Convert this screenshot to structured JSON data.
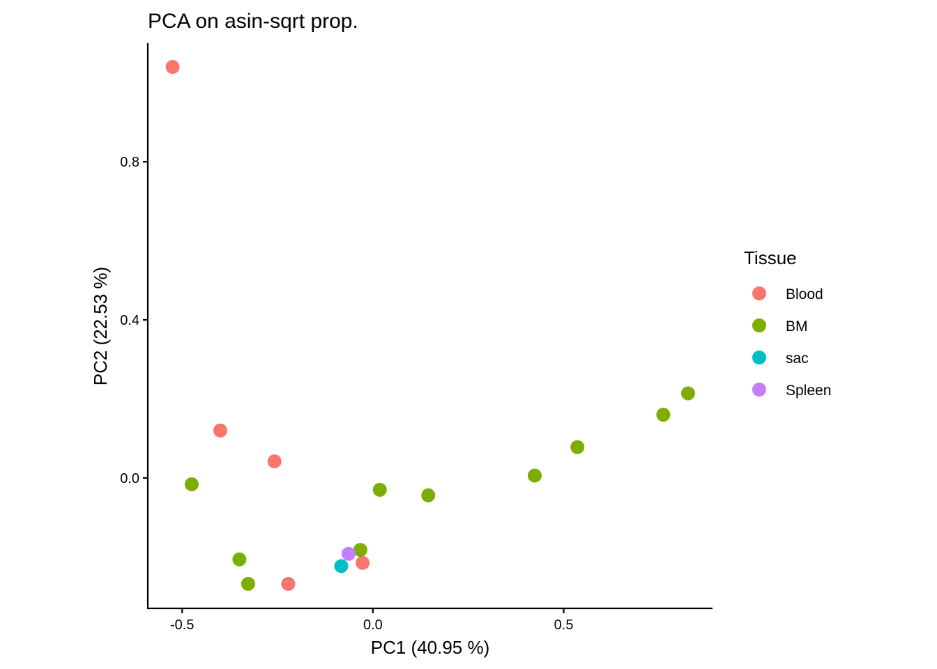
{
  "chart_data": {
    "type": "scatter",
    "title": "PCA on asin-sqrt prop.",
    "xlabel": "PC1 (40.95 %)",
    "ylabel": "PC2 (22.53 %)",
    "xlim": [
      -0.59,
      0.89
    ],
    "ylim": [
      -0.33,
      1.1
    ],
    "xticks": [
      -0.5,
      0.0,
      0.5
    ],
    "xtick_labels": [
      "-0.5",
      "0.0",
      "0.5"
    ],
    "yticks": [
      0.0,
      0.4,
      0.8
    ],
    "ytick_labels": [
      "0.0",
      "0.4",
      "0.8"
    ],
    "grid": false,
    "legend": {
      "title": "Tissue",
      "placement": "right",
      "entries": [
        {
          "name": "Blood",
          "color": "#F8766D"
        },
        {
          "name": "BM",
          "color": "#7CAE00"
        },
        {
          "name": "sac",
          "color": "#00BFC4"
        },
        {
          "name": "Spleen",
          "color": "#C77CFF"
        }
      ]
    },
    "series": [
      {
        "name": "Blood",
        "color": "#F8766D",
        "points": [
          [
            -0.525,
            1.04
          ],
          [
            -0.4,
            0.12
          ],
          [
            -0.258,
            0.042
          ],
          [
            -0.222,
            -0.268
          ],
          [
            -0.027,
            -0.215
          ]
        ]
      },
      {
        "name": "BM",
        "color": "#7CAE00",
        "points": [
          [
            -0.475,
            -0.016
          ],
          [
            -0.35,
            -0.206
          ],
          [
            -0.327,
            -0.268
          ],
          [
            -0.033,
            -0.182
          ],
          [
            0.018,
            -0.03
          ],
          [
            0.145,
            -0.044
          ],
          [
            0.424,
            0.006
          ],
          [
            0.536,
            0.078
          ],
          [
            0.761,
            0.16
          ],
          [
            0.826,
            0.214
          ]
        ]
      },
      {
        "name": "sac",
        "color": "#00BFC4",
        "points": [
          [
            -0.083,
            -0.223
          ]
        ]
      },
      {
        "name": "Spleen",
        "color": "#C77CFF",
        "points": [
          [
            -0.064,
            -0.192
          ]
        ]
      }
    ]
  }
}
